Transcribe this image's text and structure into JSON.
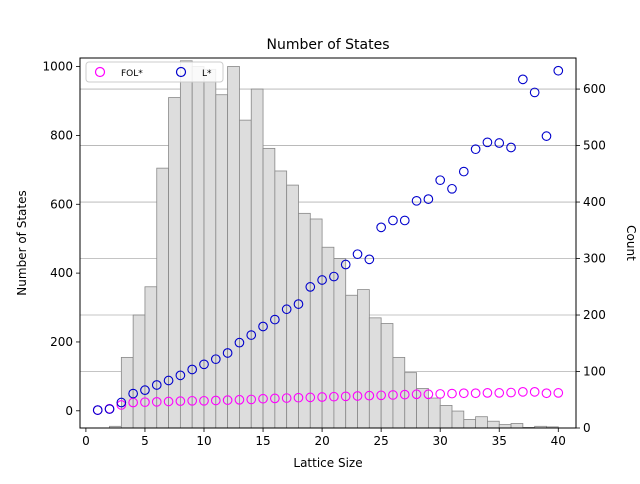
{
  "chart_data": {
    "type": "scatter",
    "title": "Number of States",
    "xlabel": "Lattice Size",
    "ylabel": "Number of States",
    "y2label": "Count",
    "xlim": [
      -0.5,
      41.5
    ],
    "ylim": [
      -50,
      1025
    ],
    "y2lim": [
      0,
      655
    ],
    "xticks": [
      0,
      5,
      10,
      15,
      20,
      25,
      30,
      35,
      40
    ],
    "yticks": [
      0,
      200,
      400,
      600,
      800,
      1000
    ],
    "y2ticks": [
      0,
      100,
      200,
      300,
      400,
      500,
      600
    ],
    "grid": "horizontal lines on secondary axis",
    "legend_position": "top-left",
    "series": [
      {
        "name": "FOL*",
        "color": "#ff00ff",
        "marker": "open-circle",
        "x": [
          1,
          2,
          3,
          4,
          5,
          6,
          7,
          8,
          9,
          10,
          11,
          12,
          13,
          14,
          15,
          16,
          17,
          18,
          19,
          20,
          21,
          22,
          23,
          24,
          25,
          26,
          27,
          28,
          29,
          30,
          31,
          32,
          33,
          34,
          35,
          36,
          37,
          38,
          39,
          40
        ],
        "y": [
          2,
          6,
          17,
          24,
          25,
          26,
          27,
          28,
          29,
          29,
          30,
          31,
          32,
          33,
          35,
          36,
          37,
          38,
          39,
          40,
          41,
          42,
          43,
          44,
          45,
          46,
          47,
          48,
          48,
          49,
          50,
          51,
          51,
          52,
          52,
          53,
          55,
          55,
          51,
          52
        ]
      },
      {
        "name": "L*",
        "color": "#0000cc",
        "marker": "open-circle",
        "x": [
          1,
          2,
          3,
          4,
          5,
          6,
          7,
          8,
          9,
          10,
          11,
          12,
          13,
          14,
          15,
          16,
          17,
          18,
          19,
          20,
          21,
          22,
          23,
          24,
          25,
          26,
          27,
          28,
          29,
          30,
          31,
          32,
          33,
          34,
          35,
          36,
          37,
          38,
          39,
          40
        ],
        "y": [
          2,
          5,
          24,
          50,
          60,
          75,
          88,
          103,
          120,
          135,
          150,
          168,
          198,
          220,
          245,
          265,
          295,
          310,
          360,
          380,
          390,
          425,
          455,
          440,
          533,
          553,
          553,
          610,
          615,
          670,
          645,
          695,
          760,
          780,
          778,
          765,
          963,
          925,
          798,
          988
        ]
      }
    ],
    "histogram": {
      "name": "Count",
      "axis": "secondary",
      "color": "#dddddd",
      "edgecolor": "#888888",
      "bin_width": 1,
      "bin_left_edges": [
        1,
        2,
        3,
        4,
        5,
        6,
        7,
        8,
        9,
        10,
        11,
        12,
        13,
        14,
        15,
        16,
        17,
        18,
        19,
        20,
        21,
        22,
        23,
        24,
        25,
        26,
        27,
        28,
        29,
        30,
        31,
        32,
        33,
        34,
        35,
        36,
        37,
        38,
        39,
        40
      ],
      "counts": [
        0,
        3,
        125,
        200,
        250,
        460,
        585,
        650,
        640,
        635,
        590,
        640,
        545,
        600,
        495,
        455,
        430,
        380,
        370,
        320,
        300,
        235,
        245,
        195,
        185,
        125,
        98,
        70,
        53,
        40,
        30,
        15,
        20,
        12,
        6,
        8,
        1,
        3,
        2,
        0
      ]
    }
  }
}
